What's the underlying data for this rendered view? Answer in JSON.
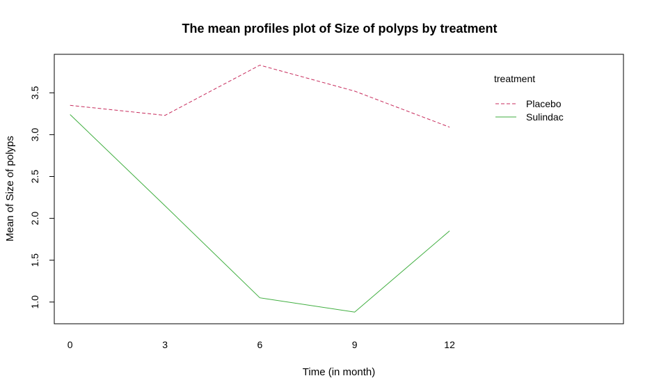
{
  "chart_data": {
    "type": "line",
    "title": "The mean profiles plot of Size of polyps by treatment",
    "xlabel": "Time (in month)",
    "ylabel": "Mean of Size of polyps",
    "x": [
      0,
      3,
      6,
      9,
      12
    ],
    "x_ticks": [
      "0",
      "3",
      "6",
      "9",
      "12"
    ],
    "y_ticks": [
      "1.0",
      "1.5",
      "2.0",
      "2.5",
      "3.0",
      "3.5"
    ],
    "xlim": [
      -0.5,
      17.5
    ],
    "ylim": [
      0.74,
      3.96
    ],
    "grid": false,
    "legend": {
      "title": "treatment",
      "position": "top-right"
    },
    "series": [
      {
        "name": "Placebo",
        "values": [
          3.35,
          3.23,
          3.83,
          3.52,
          3.09
        ],
        "color": "#c72b5c",
        "dash": "dashed"
      },
      {
        "name": "Sulindac",
        "values": [
          3.24,
          2.15,
          1.05,
          0.88,
          1.85
        ],
        "color": "#3fae3f",
        "dash": "solid"
      }
    ]
  }
}
